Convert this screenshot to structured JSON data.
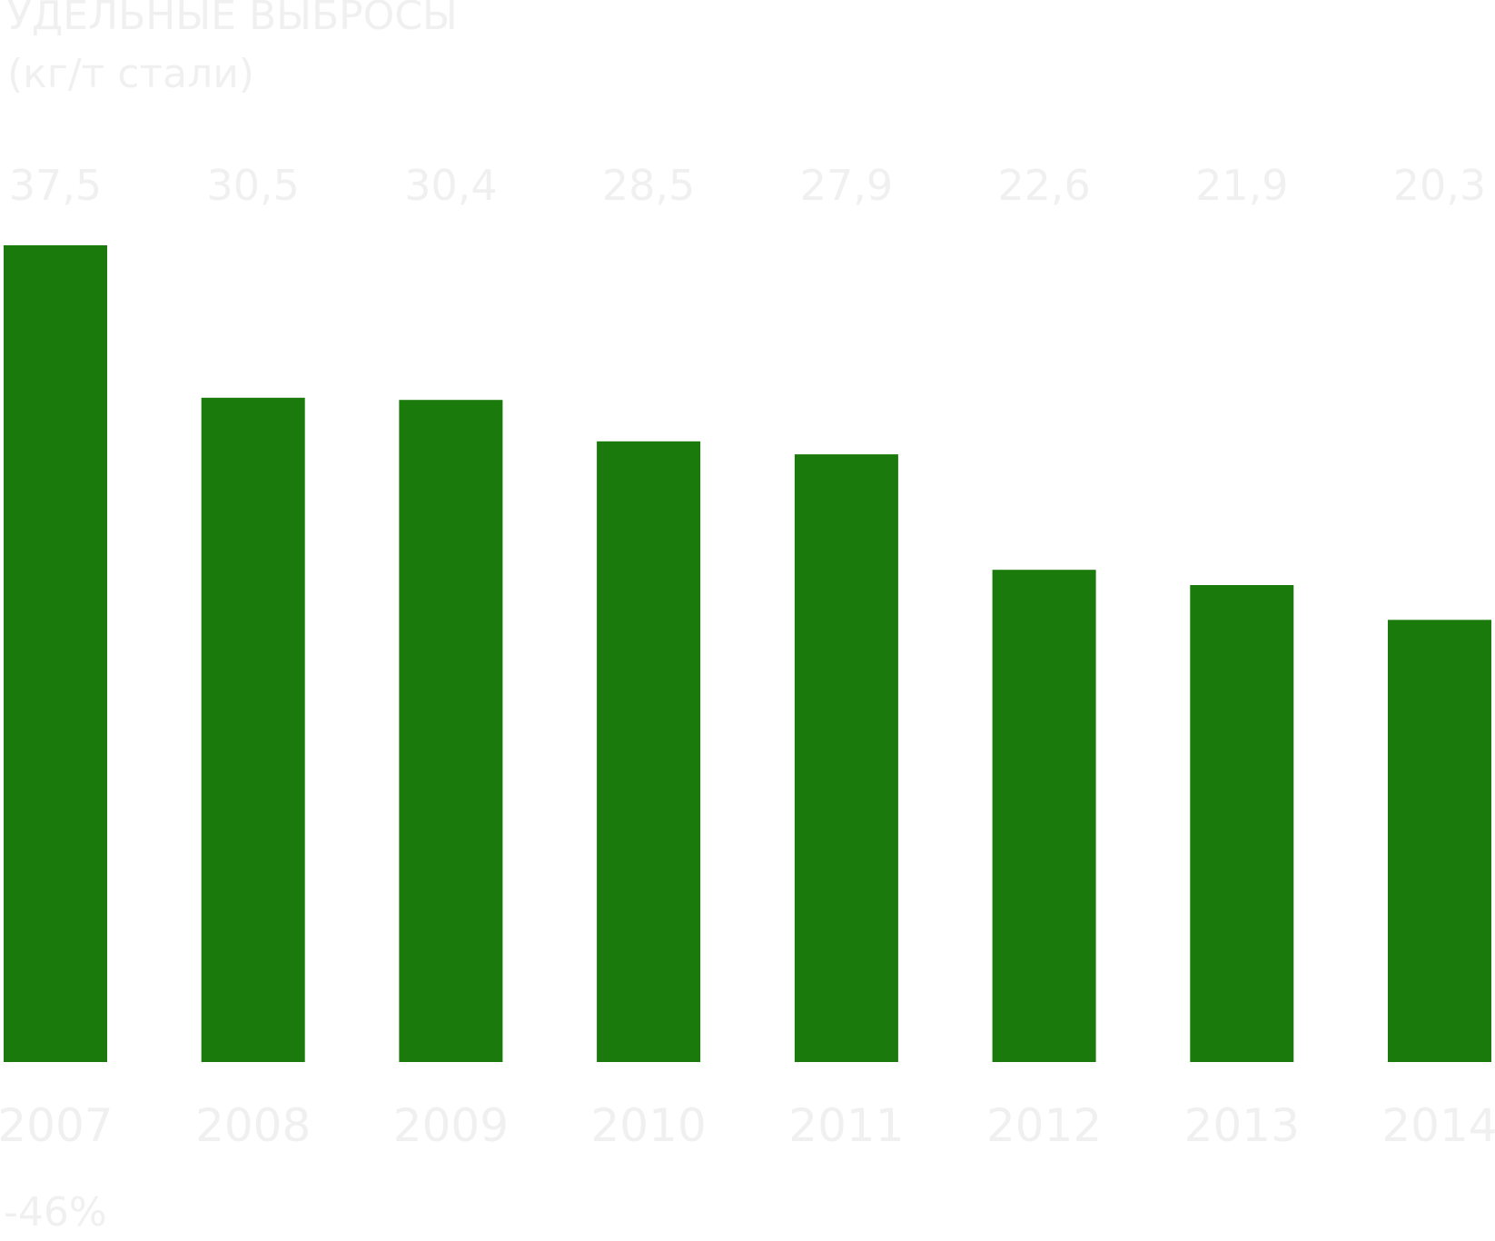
{
  "chart_data": {
    "type": "bar",
    "title": "УДЕЛЬНЫЕ ВЫБРОСЫ",
    "subtitle": "(кг/т стали)",
    "categories": [
      "2007",
      "2008",
      "2009",
      "2010",
      "2011",
      "2012",
      "2013",
      "2014"
    ],
    "values": [
      37.5,
      30.5,
      30.4,
      28.5,
      27.9,
      22.6,
      21.9,
      20.3
    ],
    "value_labels": [
      "37,5",
      "30,5",
      "30,4",
      "28,5",
      "27,9",
      "22,6",
      "21,9",
      "20,3"
    ],
    "ylim": [
      0,
      37.5
    ],
    "grid": false,
    "bar_color": "#1a7a0b",
    "label_color": "#f0f0f0",
    "annotation": "-46%"
  }
}
